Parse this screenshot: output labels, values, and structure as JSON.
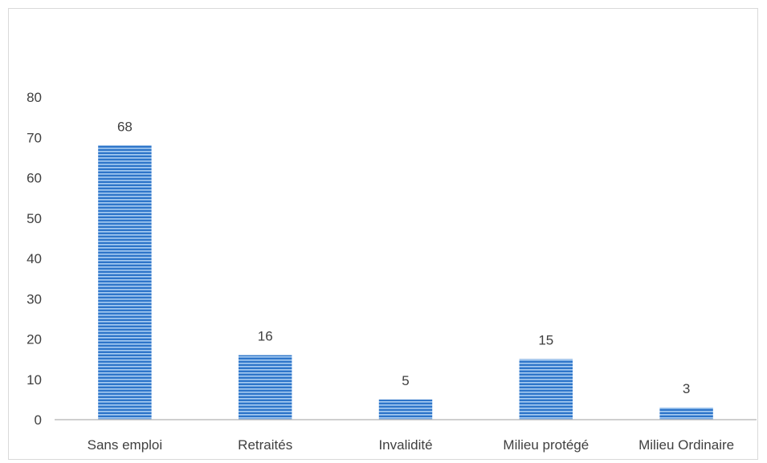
{
  "chart_data": {
    "type": "bar",
    "categories": [
      "Sans emploi",
      "Retraités",
      "Invalidité",
      "Milieu protégé",
      "Milieu Ordinaire"
    ],
    "values": [
      68,
      16,
      5,
      15,
      3
    ],
    "data_labels": [
      "68",
      "16",
      "5",
      "15",
      "3"
    ],
    "yticks": [
      "0",
      "10",
      "20",
      "30",
      "40",
      "50",
      "60",
      "70",
      "80"
    ],
    "ylim": [
      0,
      80
    ],
    "grid": false,
    "legend": "none",
    "bar_color": "#2e75c9",
    "bar_stripe_color": "#a9cdf2"
  }
}
